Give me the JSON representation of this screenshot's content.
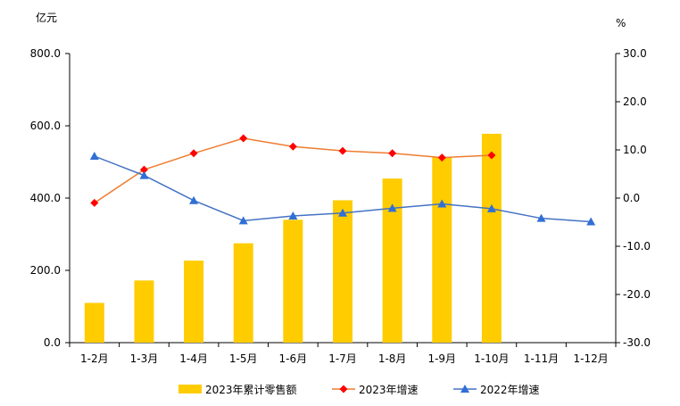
{
  "chart_data": {
    "type": "bar+line",
    "categories": [
      "1-2月",
      "1-3月",
      "1-4月",
      "1-5月",
      "1-6月",
      "1-7月",
      "1-8月",
      "1-9月",
      "1-10月",
      "1-11月",
      "1-12月"
    ],
    "left_axis": {
      "unit": "亿元",
      "range": [
        0,
        800
      ],
      "ticks": [
        "0.0",
        "200.0",
        "400.0",
        "600.0",
        "800.0"
      ]
    },
    "right_axis": {
      "unit": "%",
      "range": [
        -30,
        30
      ],
      "ticks": [
        "-30.0",
        "-20.0",
        "-10.0",
        "0.0",
        "10.0",
        "20.0",
        "30.0"
      ]
    },
    "series": [
      {
        "name": "2023年累计零售额",
        "kind": "bar",
        "axis": "left",
        "color": "#FFCC00",
        "values": [
          110,
          172,
          227,
          275,
          340,
          394,
          454,
          513,
          578,
          null,
          null
        ]
      },
      {
        "name": "2023年增速",
        "kind": "line",
        "axis": "right",
        "line_color": "#ED7D31",
        "marker_color": "#FF0000",
        "marker": "diamond",
        "values": [
          -1.0,
          5.9,
          9.3,
          12.4,
          10.7,
          9.8,
          9.3,
          8.4,
          8.9,
          null,
          null
        ]
      },
      {
        "name": "2022年增速",
        "kind": "line",
        "axis": "right",
        "line_color": "#4472C4",
        "marker_color": "#2F6FD6",
        "marker": "triangle",
        "values": [
          8.7,
          4.7,
          -0.5,
          -4.7,
          -3.7,
          -3.1,
          -2.1,
          -1.2,
          -2.2,
          -4.2,
          -4.9
        ]
      }
    ],
    "legend_position": "bottom"
  }
}
